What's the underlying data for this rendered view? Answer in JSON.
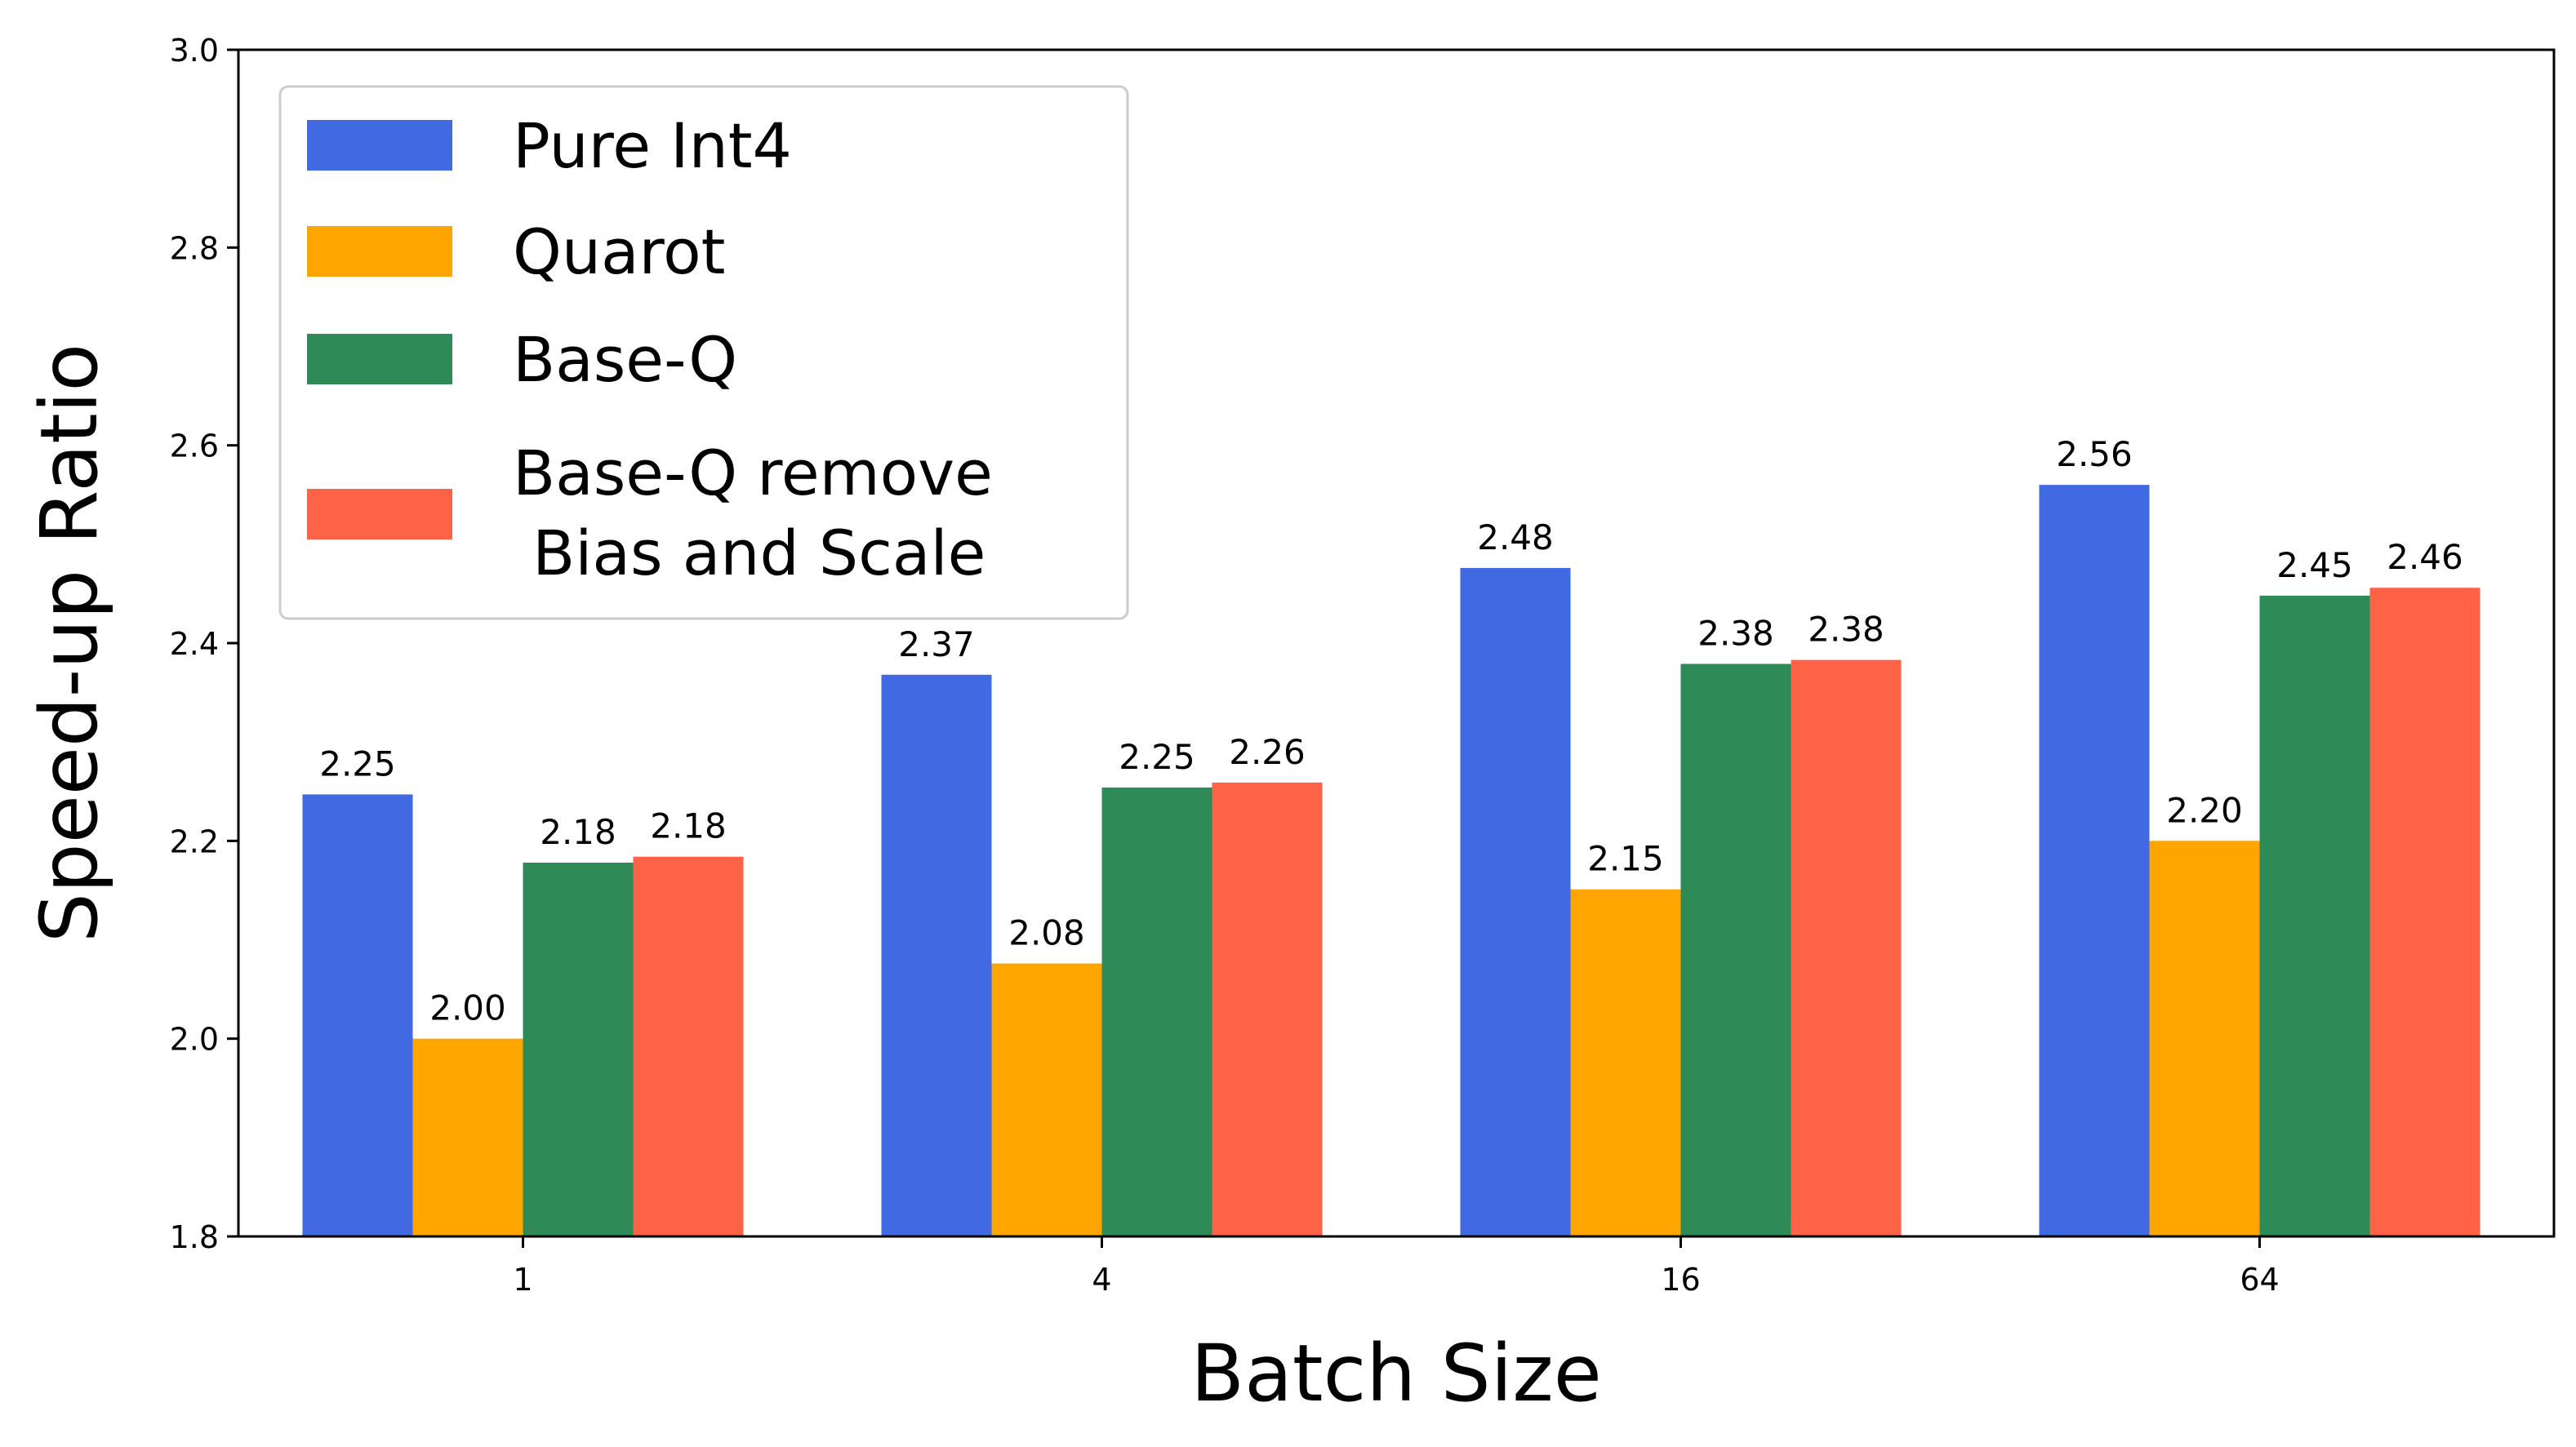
{
  "chart_data": {
    "type": "bar",
    "title": "",
    "xlabel": "Batch Size",
    "ylabel": "Speed-up Ratio",
    "categories": [
      "1",
      "4",
      "16",
      "64"
    ],
    "ylim": [
      1.8,
      3.0
    ],
    "yticks": [
      "1.8",
      "2.0",
      "2.2",
      "2.4",
      "2.6",
      "2.8",
      "3.0"
    ],
    "grid": false,
    "legend_position": "top-left",
    "series": [
      {
        "name": "Pure Int4",
        "color": "#4169E1",
        "values": [
          2.247,
          2.368,
          2.476,
          2.56
        ],
        "labels": [
          "2.25",
          "2.37",
          "2.48",
          "2.56"
        ]
      },
      {
        "name": "Quarot",
        "color": "#FFA500",
        "values": [
          2.0,
          2.076,
          2.151,
          2.2
        ],
        "labels": [
          "2.00",
          "2.08",
          "2.15",
          "2.20"
        ]
      },
      {
        "name": "Base-Q",
        "color": "#2E8B57",
        "values": [
          2.178,
          2.254,
          2.379,
          2.448
        ],
        "labels": [
          "2.18",
          "2.25",
          "2.38",
          "2.45"
        ]
      },
      {
        "name": "Base-Q remove\n Bias and Scale",
        "color": "#FF6347",
        "values": [
          2.184,
          2.259,
          2.383,
          2.456
        ],
        "labels": [
          "2.18",
          "2.26",
          "2.38",
          "2.46"
        ]
      }
    ]
  }
}
